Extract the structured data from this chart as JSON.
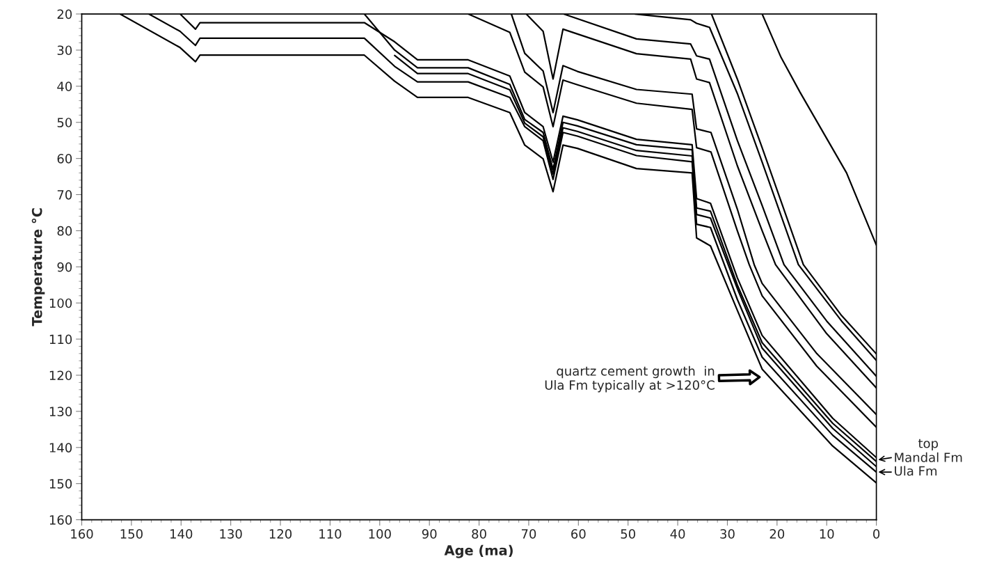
{
  "chart_data": {
    "type": "line",
    "xlabel": "Age (ma)",
    "ylabel": "Temperature °C",
    "xlim": [
      160,
      0
    ],
    "xticks": [
      160,
      150,
      140,
      130,
      120,
      110,
      100,
      90,
      80,
      70,
      60,
      50,
      40,
      30,
      20,
      10,
      0
    ],
    "ylim": [
      160,
      20
    ],
    "yticks": [
      20,
      30,
      40,
      50,
      60,
      70,
      80,
      90,
      100,
      110,
      120,
      130,
      140,
      150,
      160
    ],
    "grid": false,
    "legend": false,
    "marker": "none",
    "line_style": "solid",
    "series": [
      {
        "color": "#000000",
        "x": [
          23,
          19.2,
          15.4,
          6,
          0
        ],
        "values": [
          20,
          32,
          41.6,
          64,
          84
        ]
      },
      {
        "color": "#000000",
        "x": [
          33.2,
          28,
          23,
          14.7,
          7,
          0
        ],
        "values": [
          20,
          38,
          57,
          89.4,
          103.5,
          114.1
        ]
      },
      {
        "color": "#000000",
        "x": [
          48.6,
          37.4,
          36.2,
          33.6,
          28,
          23,
          15.7,
          7,
          0
        ],
        "values": [
          20,
          21.6,
          22.6,
          23.7,
          42,
          61,
          89.4,
          105,
          115.9
        ]
      },
      {
        "color": "#000000",
        "x": [
          63.0,
          48.3,
          37.4,
          36.2,
          33.6,
          28,
          23,
          18.6,
          10,
          0
        ],
        "values": [
          20,
          26.9,
          28.3,
          31.6,
          32.5,
          55,
          73,
          89.4,
          105,
          120.3
        ]
      },
      {
        "color": "#000000",
        "x": [
          70.5,
          67.1,
          65.1,
          63.1,
          48.3,
          37.4,
          36.2,
          33.6,
          28,
          23,
          20.3,
          10,
          0
        ],
        "values": [
          20,
          24.8,
          38,
          24.2,
          31.0,
          32.5,
          38,
          39,
          62,
          80,
          89.4,
          108.5,
          123.5
        ]
      },
      {
        "color": "#000000",
        "x": [
          73.5,
          70.8,
          67.1,
          65.1,
          63.1,
          60.2,
          48.3,
          37.1,
          36.2,
          33.3,
          28,
          24.6,
          23,
          12,
          0
        ],
        "values": [
          20,
          30.9,
          35.8,
          47.3,
          34.3,
          35.9,
          40.9,
          42.2,
          51.8,
          52.8,
          74,
          89.4,
          94.6,
          114,
          130.9
        ]
      },
      {
        "color": "#000000",
        "x": [
          82.2,
          73.8,
          70.8,
          67.1,
          65.1,
          63.1,
          60.2,
          48.3,
          37.1,
          36.2,
          33.3,
          28,
          25.6,
          23,
          12,
          0
        ],
        "values": [
          20,
          25.1,
          36.1,
          40.2,
          51.2,
          38.3,
          39.6,
          44.7,
          46.4,
          57,
          58.2,
          80,
          89.4,
          98,
          117.5,
          134.4
        ]
      },
      {
        "color": "#000000",
        "x": [
          140.2,
          137.1,
          136.2,
          103.1,
          97,
          92.4,
          82.2,
          73.8,
          70.8,
          67.1,
          65.1,
          63.1,
          60.2,
          48.3,
          37.1,
          36.2,
          33.4,
          28,
          23,
          8.8,
          0
        ],
        "values": [
          20,
          24.2,
          22.4,
          22.4,
          27.7,
          32.7,
          32.7,
          37.2,
          47.3,
          51.2,
          61,
          48.3,
          49.3,
          54.7,
          56.2,
          71.1,
          72.4,
          93,
          109,
          131.9,
          142.8
        ]
      },
      {
        "color": "#000000",
        "x": [
          103.1,
          97,
          92.4,
          82.2,
          73.8,
          70.8,
          67.1,
          65.1,
          63.1,
          60.2,
          48.3,
          37.1,
          36.2,
          33.4,
          28,
          23,
          8.8,
          0
        ],
        "values": [
          20,
          30,
          34.9,
          34.9,
          39.5,
          49.2,
          52.8,
          63,
          50,
          51,
          56.2,
          57.6,
          73.7,
          74.6,
          95,
          111,
          133.3,
          143.9
        ]
      },
      {
        "color": "#000000",
        "x": [
          97,
          92.4,
          82.2,
          73.8,
          70.8,
          67.1,
          65.1,
          63.1,
          60.2,
          48.3,
          37.1,
          36.2,
          33.4,
          28,
          23,
          8.8,
          0
        ],
        "values": [
          31.5,
          36.5,
          36.5,
          41,
          50.2,
          54,
          64.3,
          51.5,
          52.5,
          57.8,
          59.3,
          75.5,
          76.5,
          96,
          112.5,
          134.7,
          145.3
        ]
      },
      {
        "color": "#000000",
        "x": [
          146.5,
          140.2,
          137.1,
          136.2,
          103.1,
          97,
          92.4,
          82.2,
          73.8,
          70.8,
          67.1,
          65.1,
          63.1,
          60.2,
          48.3,
          37.1,
          36.2,
          33.4,
          28,
          23,
          8.8,
          0
        ],
        "values": [
          20,
          24.8,
          28.7,
          26.7,
          26.7,
          34.5,
          38.8,
          38.8,
          43.1,
          51.2,
          55.1,
          65.8,
          52.8,
          53.8,
          59.2,
          60.9,
          78.2,
          79.1,
          99,
          115,
          136.6,
          146.8
        ]
      },
      {
        "color": "#000000",
        "x": [
          152.3,
          140.2,
          137.1,
          136.2,
          103.1,
          97,
          92.4,
          82.2,
          73.8,
          70.8,
          67.1,
          65.1,
          63.1,
          60.2,
          48.3,
          37.1,
          36.2,
          33.4,
          28,
          23,
          8.8,
          0
        ],
        "values": [
          20,
          29.3,
          33.2,
          31.4,
          31.4,
          38.6,
          43.1,
          43.1,
          47.3,
          56.3,
          60.1,
          69.2,
          56.3,
          57.2,
          62.8,
          64,
          82,
          84.2,
          102,
          118.3,
          139.6,
          149.8
        ]
      }
    ],
    "annotations": [
      "quartz cement growth  in\nUla Fm typically at >120°C",
      {
        "text": "top\nMandal Fm",
        "x": 0,
        "y": 143.5
      },
      {
        "text": "Ula Fm",
        "x": 0,
        "y": 146.8
      }
    ]
  }
}
